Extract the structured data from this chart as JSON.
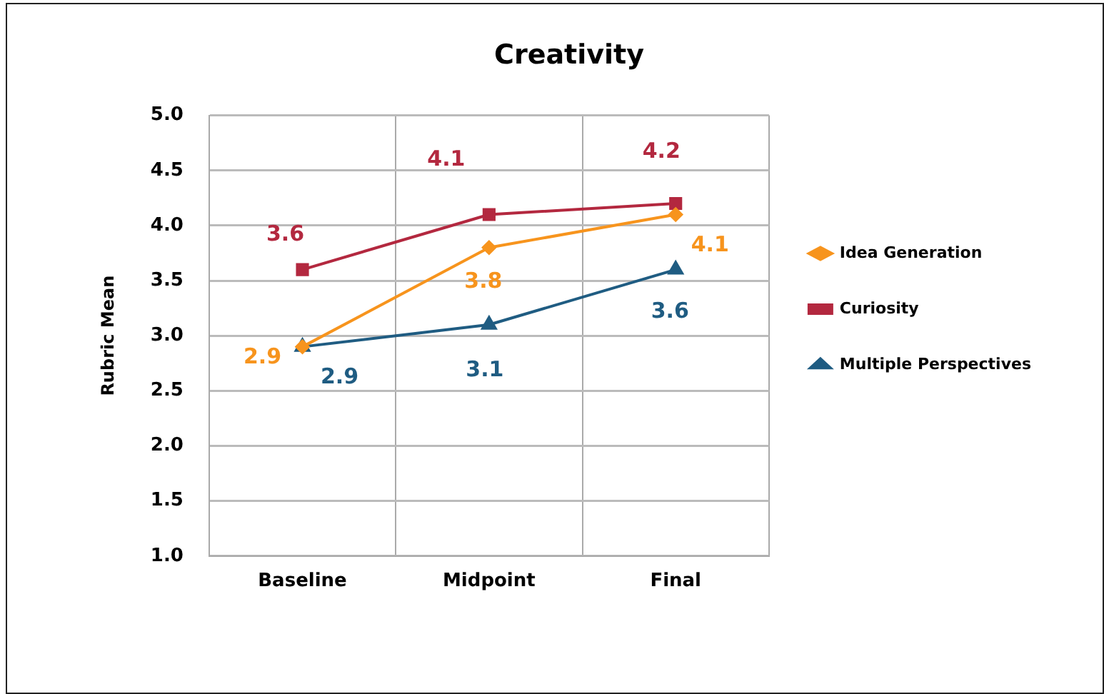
{
  "chart_data": {
    "type": "line",
    "title": "Creativity",
    "ylabel": "Rubric Mean",
    "categories": [
      "Baseline",
      "Midpoint",
      "Final"
    ],
    "series": [
      {
        "name": "Idea Generation",
        "color": "#f7941d",
        "marker": "diamond",
        "values": [
          2.9,
          3.8,
          4.1
        ]
      },
      {
        "name": "Curiosity",
        "color": "#b3283f",
        "marker": "square",
        "values": [
          3.6,
          4.1,
          4.2
        ]
      },
      {
        "name": "Multiple Perspectives",
        "color": "#1f5c82",
        "marker": "triangle",
        "values": [
          2.9,
          3.1,
          3.6
        ]
      }
    ],
    "ylim": [
      1.0,
      5.0
    ],
    "yticks": [
      {
        "value": 1,
        "label": "1.0"
      },
      {
        "value": 1.5,
        "label": "1.5"
      },
      {
        "value": 2,
        "label": "2.0"
      },
      {
        "value": 2.5,
        "label": "2.5"
      },
      {
        "value": 3,
        "label": "3.0"
      },
      {
        "value": 3.5,
        "label": "3.5"
      },
      {
        "value": 4,
        "label": "4.0"
      },
      {
        "value": 4.5,
        "label": "4.5"
      },
      {
        "value": 5,
        "label": "5.0"
      }
    ],
    "grid": true,
    "legend": "right",
    "data_labels": true
  }
}
